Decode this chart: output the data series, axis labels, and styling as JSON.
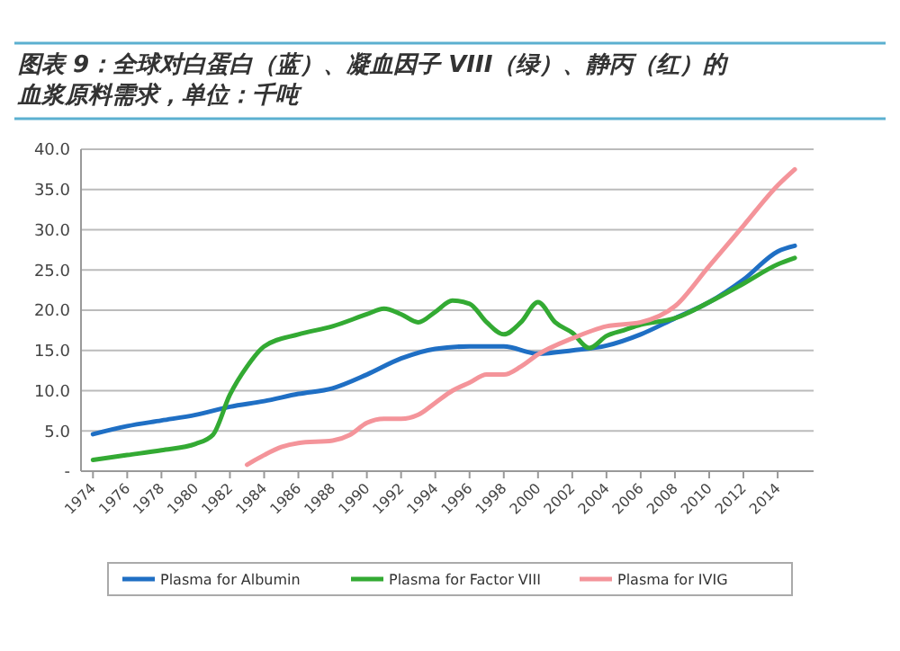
{
  "chart_data": {
    "type": "line",
    "title": "图表 9：全球对白蛋白（蓝）、凝血因子 VIII（绿）、静丙（红）的血浆原料需求，单位：千吨",
    "xlim": [
      1973.3,
      2016.1
    ],
    "xticks": [
      1974,
      1976,
      1978,
      1980,
      1982,
      1984,
      1986,
      1988,
      1990,
      1992,
      1994,
      1996,
      1998,
      2000,
      2002,
      2004,
      2006,
      2008,
      2010,
      2012,
      2014
    ],
    "ylim": [
      0,
      40
    ],
    "yticks": [
      {
        "value": 0,
        "label": "-"
      },
      {
        "value": 5,
        "label": "5.0"
      },
      {
        "value": 10,
        "label": "10.0"
      },
      {
        "value": 15,
        "label": "15.0"
      },
      {
        "value": 20,
        "label": "20.0"
      },
      {
        "value": 25,
        "label": "25.0"
      },
      {
        "value": 30,
        "label": "30.0"
      },
      {
        "value": 35,
        "label": "35.0"
      },
      {
        "value": 40,
        "label": "40.0"
      }
    ],
    "grid": "y",
    "legend": "bottom",
    "marker": "none",
    "line_style": "solid",
    "series": [
      {
        "name": "Plasma for Albumin",
        "color": "#1f6fc4",
        "x": [
          1974,
          1976,
          1978,
          1980,
          1982,
          1984,
          1986,
          1988,
          1990,
          1992,
          1994,
          1996,
          1998,
          2000,
          2002,
          2004,
          2006,
          2008,
          2010,
          2012,
          2014,
          2015
        ],
        "values": [
          4.6,
          5.6,
          6.3,
          7.0,
          8.0,
          8.7,
          9.6,
          10.3,
          12.0,
          14.0,
          15.2,
          15.5,
          15.5,
          14.6,
          15.0,
          15.6,
          17.0,
          19.0,
          21.0,
          23.8,
          27.3,
          28.0
        ]
      },
      {
        "name": "Plasma for Factor VIII",
        "color": "#33aa33",
        "x": [
          1974,
          1976,
          1978,
          1980,
          1981,
          1982,
          1983,
          1984,
          1986,
          1988,
          1990,
          1991,
          1992,
          1993,
          1994,
          1995,
          1996,
          1997,
          1998,
          1999,
          2000,
          2001,
          2002,
          2003,
          2004,
          2005,
          2006,
          2008,
          2010,
          2012,
          2014,
          2015
        ],
        "values": [
          1.4,
          2.0,
          2.6,
          3.4,
          4.5,
          9.5,
          13.0,
          15.5,
          17.0,
          18.0,
          19.5,
          20.2,
          19.5,
          18.5,
          19.8,
          21.2,
          20.8,
          18.5,
          17.0,
          18.5,
          21.0,
          18.5,
          17.2,
          15.3,
          16.8,
          17.5,
          18.2,
          19.0,
          21.0,
          23.3,
          25.7,
          26.5
        ]
      },
      {
        "name": "Plasma for IVIG",
        "color": "#f4949a",
        "x": [
          1983,
          1984,
          1985,
          1986,
          1988,
          1989,
          1990,
          1991,
          1992,
          1993,
          1994,
          1995,
          1996,
          1997,
          1998,
          1999,
          2000,
          2002,
          2004,
          2006,
          2008,
          2010,
          2012,
          2014,
          2015
        ],
        "values": [
          0.8,
          2.0,
          3.0,
          3.5,
          3.8,
          4.5,
          6.0,
          6.5,
          6.5,
          7.0,
          8.5,
          10.0,
          11.0,
          12.0,
          12.0,
          13.0,
          14.5,
          16.5,
          18.0,
          18.5,
          20.5,
          25.5,
          30.5,
          35.5,
          37.5
        ]
      }
    ]
  }
}
